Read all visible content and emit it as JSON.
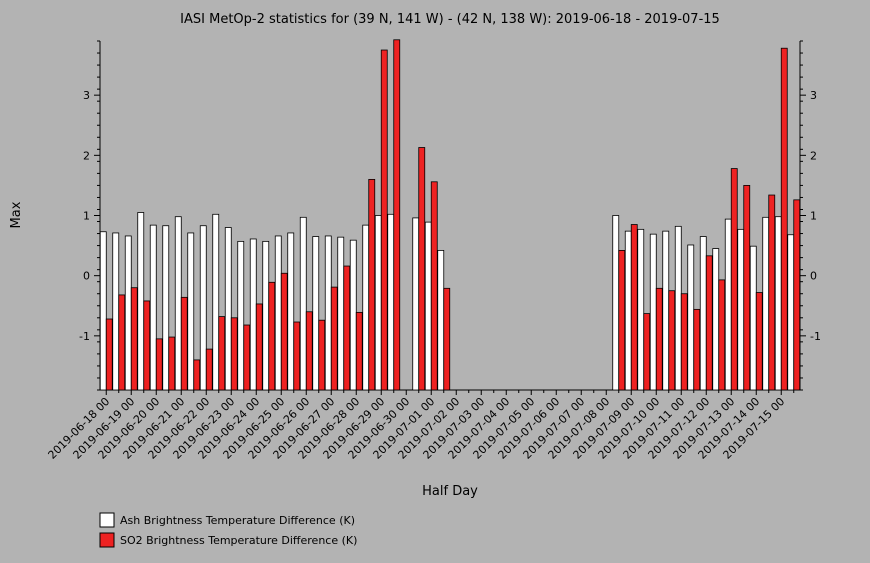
{
  "chart_data": {
    "type": "bar",
    "title": "IASI MetOp-2 statistics for (39 N, 141 W) - (42 N, 138 W): 2019-06-18 - 2019-07-15",
    "xlabel": "Half Day",
    "ylabel": "Max",
    "ylim": [
      -1.9,
      3.9
    ],
    "yticks": [
      -1,
      0,
      1,
      2,
      3
    ],
    "categories": [
      "2019-06-18 00",
      "2019-06-18 12",
      "2019-06-19 00",
      "2019-06-19 12",
      "2019-06-20 00",
      "2019-06-20 12",
      "2019-06-21 00",
      "2019-06-21 12",
      "2019-06-22 00",
      "2019-06-22 12",
      "2019-06-23 00",
      "2019-06-23 12",
      "2019-06-24 00",
      "2019-06-24 12",
      "2019-06-25 00",
      "2019-06-25 12",
      "2019-06-26 00",
      "2019-06-26 12",
      "2019-06-27 00",
      "2019-06-27 12",
      "2019-06-28 00",
      "2019-06-28 12",
      "2019-06-29 00",
      "2019-06-29 12",
      "2019-06-30 00",
      "2019-06-30 12",
      "2019-07-01 00",
      "2019-07-01 12",
      "2019-07-02 00",
      "2019-07-02 12",
      "2019-07-03 00",
      "2019-07-03 12",
      "2019-07-04 00",
      "2019-07-04 12",
      "2019-07-05 00",
      "2019-07-05 12",
      "2019-07-06 00",
      "2019-07-06 12",
      "2019-07-07 00",
      "2019-07-07 12",
      "2019-07-08 00",
      "2019-07-08 12",
      "2019-07-09 00",
      "2019-07-09 12",
      "2019-07-10 00",
      "2019-07-10 12",
      "2019-07-11 00",
      "2019-07-11 12",
      "2019-07-12 00",
      "2019-07-12 12",
      "2019-07-13 00",
      "2019-07-13 12",
      "2019-07-14 00",
      "2019-07-14 12",
      "2019-07-15 00",
      "2019-07-15 12"
    ],
    "tick_labels": [
      "2019-06-18 00",
      "2019-06-19 00",
      "2019-06-20 00",
      "2019-06-21 00",
      "2019-06-22 00",
      "2019-06-23 00",
      "2019-06-24 00",
      "2019-06-25 00",
      "2019-06-26 00",
      "2019-06-27 00",
      "2019-06-28 00",
      "2019-06-29 00",
      "2019-06-30 00",
      "2019-07-01 00",
      "2019-07-02 00",
      "2019-07-03 00",
      "2019-07-04 00",
      "2019-07-05 00",
      "2019-07-06 00",
      "2019-07-07 00",
      "2019-07-08 00",
      "2019-07-09 00",
      "2019-07-10 00",
      "2019-07-11 00",
      "2019-07-12 00",
      "2019-07-13 00",
      "2019-07-14 00",
      "2019-07-15 00"
    ],
    "series": [
      {
        "name": "Ash Brightness Temperature Difference (K)",
        "color": "#ffffff",
        "values": [
          0.73,
          0.71,
          0.66,
          1.05,
          0.84,
          0.83,
          0.98,
          0.71,
          0.83,
          1.02,
          0.8,
          0.57,
          0.61,
          0.57,
          0.66,
          0.71,
          0.97,
          0.65,
          0.66,
          0.64,
          0.59,
          0.84,
          1.0,
          1.02,
          null,
          0.96,
          0.89,
          0.42,
          null,
          null,
          null,
          null,
          null,
          null,
          null,
          null,
          null,
          null,
          null,
          null,
          null,
          1.0,
          0.74,
          0.77,
          0.69,
          0.74,
          0.82,
          0.51,
          0.65,
          0.45,
          0.94,
          0.77,
          0.49,
          0.97,
          0.98,
          0.68
        ]
      },
      {
        "name": "SO2 Brightness Temperature Difference (K)",
        "color": "#ee2222",
        "values": [
          -0.72,
          -0.32,
          -0.2,
          -0.42,
          -1.05,
          -1.02,
          -0.36,
          -1.4,
          -1.22,
          -0.68,
          -0.7,
          -0.82,
          -0.47,
          -0.11,
          0.04,
          -0.77,
          -0.6,
          -0.74,
          -0.19,
          0.16,
          -0.61,
          1.6,
          3.75,
          3.92,
          null,
          2.13,
          1.56,
          -0.21,
          null,
          null,
          null,
          null,
          null,
          null,
          null,
          null,
          null,
          null,
          null,
          null,
          null,
          0.42,
          0.85,
          -0.63,
          -0.21,
          -0.25,
          -0.3,
          -0.56,
          0.33,
          -0.07,
          1.78,
          1.5,
          -0.28,
          1.34,
          3.78,
          1.26
        ]
      }
    ],
    "legend_position": "bottom-left",
    "background": "#b3b3b3"
  }
}
